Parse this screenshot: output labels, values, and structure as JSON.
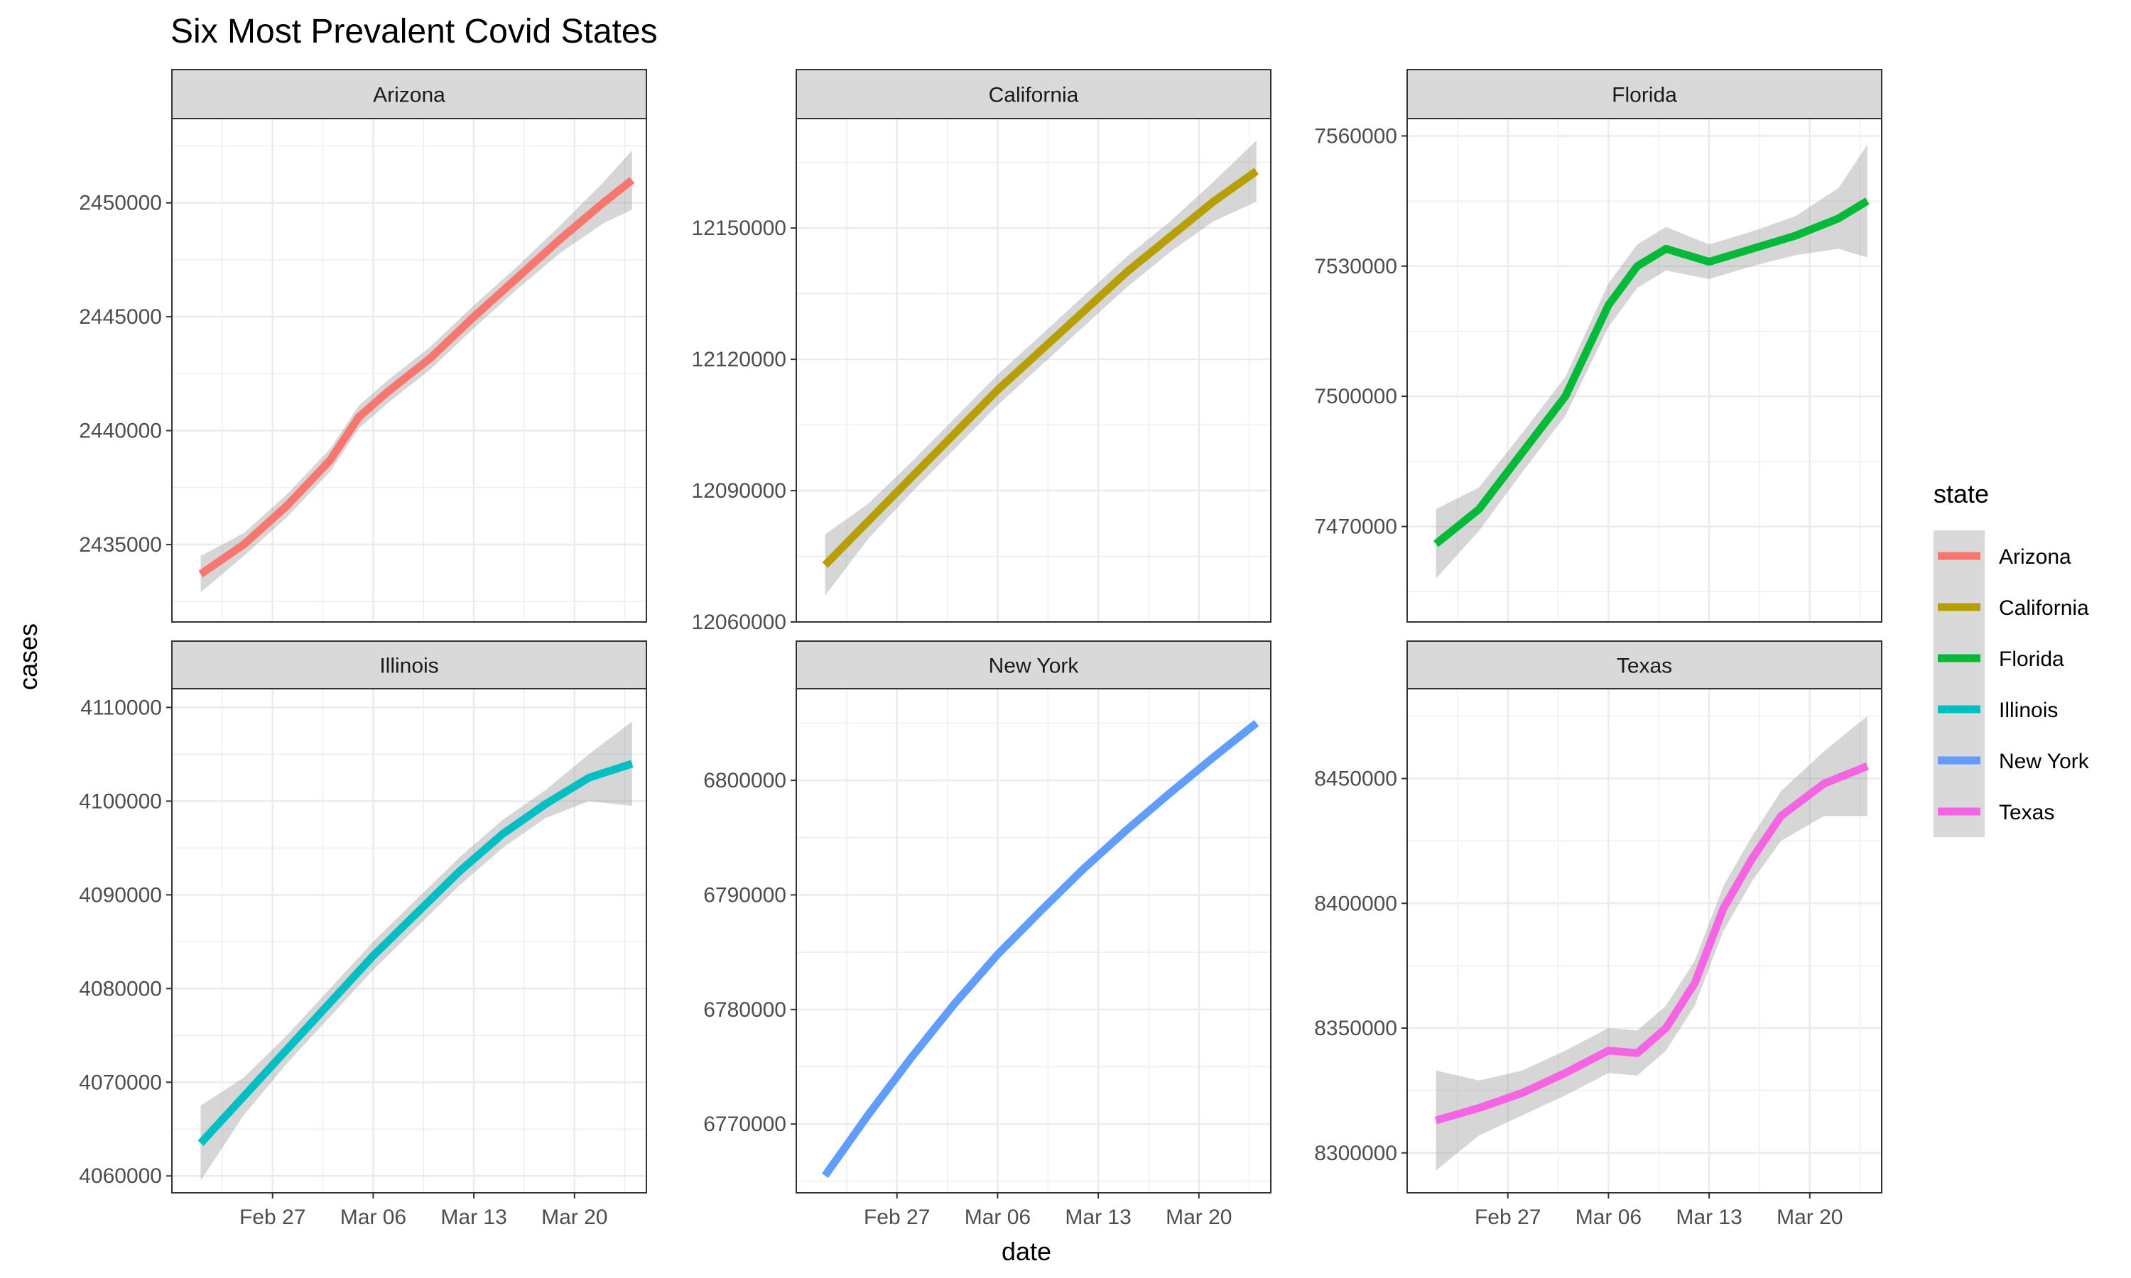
{
  "chart_data": {
    "type": "line",
    "title": "Six Most Prevalent Covid States",
    "xlabel": "date",
    "ylabel": "cases",
    "x_ticks": [
      "Feb 27",
      "Mar 06",
      "Mar 13",
      "Mar 20"
    ],
    "x_tick_dates": [
      "2022-02-27",
      "2022-03-06",
      "2022-03-13",
      "2022-03-20"
    ],
    "x_range": [
      "2022-02-20",
      "2022-03-25"
    ],
    "grid": true,
    "smoothed_with_confidence_band": true,
    "legend": {
      "title": "state",
      "position": "right",
      "entries": [
        "Arizona",
        "California",
        "Florida",
        "Illinois",
        "New York",
        "Texas"
      ]
    },
    "series": [
      {
        "name": "Arizona",
        "color": "#F8766D",
        "ylim": [
          2431600,
          2453700
        ],
        "y_ticks": [
          2435000,
          2440000,
          2445000,
          2450000
        ],
        "x": [
          "2022-02-22",
          "2022-02-25",
          "2022-02-28",
          "2022-03-03",
          "2022-03-05",
          "2022-03-07",
          "2022-03-10",
          "2022-03-13",
          "2022-03-16",
          "2022-03-19",
          "2022-03-22",
          "2022-03-24"
        ],
        "values": [
          2433700,
          2435000,
          2436700,
          2438700,
          2440600,
          2441700,
          2443200,
          2445000,
          2446700,
          2448400,
          2450000,
          2451000
        ],
        "band": [
          800,
          500,
          500,
          500,
          500,
          500,
          500,
          500,
          500,
          600,
          900,
          1300
        ]
      },
      {
        "name": "California",
        "color": "#B79F00",
        "ylim": [
          12060000,
          12175000
        ],
        "y_ticks": [
          12060000,
          12090000,
          12120000,
          12150000
        ],
        "x": [
          "2022-02-22",
          "2022-02-25",
          "2022-02-28",
          "2022-03-03",
          "2022-03-06",
          "2022-03-09",
          "2022-03-12",
          "2022-03-15",
          "2022-03-18",
          "2022-03-21",
          "2022-03-24"
        ],
        "values": [
          12073000,
          12083000,
          12093000,
          12103000,
          12113000,
          12122000,
          12131000,
          12140000,
          12148000,
          12156000,
          12163000
        ],
        "band": [
          7000,
          4000,
          3500,
          3500,
          3500,
          3500,
          3500,
          3500,
          3500,
          4500,
          7000
        ]
      },
      {
        "name": "Florida",
        "color": "#00BA38",
        "ylim": [
          7448000,
          7564000
        ],
        "y_ticks": [
          7470000,
          7500000,
          7530000,
          7560000
        ],
        "x": [
          "2022-02-22",
          "2022-02-25",
          "2022-02-28",
          "2022-03-03",
          "2022-03-06",
          "2022-03-08",
          "2022-03-10",
          "2022-03-13",
          "2022-03-16",
          "2022-03-19",
          "2022-03-22",
          "2022-03-24"
        ],
        "values": [
          7466000,
          7474000,
          7487000,
          7500000,
          7521000,
          7530000,
          7534000,
          7531000,
          7534000,
          7537000,
          7541000,
          7545000
        ],
        "band": [
          8000,
          5000,
          4500,
          4500,
          5000,
          5000,
          5000,
          4000,
          4000,
          4500,
          7000,
          13000
        ]
      },
      {
        "name": "Illinois",
        "color": "#00BFC4",
        "ylim": [
          4058200,
          4112000
        ],
        "y_ticks": [
          4060000,
          4070000,
          4080000,
          4090000,
          4100000,
          4110000
        ],
        "x": [
          "2022-02-22",
          "2022-02-25",
          "2022-02-28",
          "2022-03-03",
          "2022-03-06",
          "2022-03-09",
          "2022-03-12",
          "2022-03-15",
          "2022-03-18",
          "2022-03-21",
          "2022-03-24"
        ],
        "values": [
          4063500,
          4068500,
          4073500,
          4078500,
          4083500,
          4088000,
          4092500,
          4096500,
          4099700,
          4102500,
          4104000
        ],
        "band": [
          4000,
          2000,
          1500,
          1500,
          1500,
          1500,
          1500,
          1500,
          1500,
          2500,
          4500
        ]
      },
      {
        "name": "New York",
        "color": "#619CFF",
        "ylim": [
          6764000,
          6808000
        ],
        "y_ticks": [
          6770000,
          6780000,
          6790000,
          6800000
        ],
        "x": [
          "2022-02-22",
          "2022-02-25",
          "2022-02-28",
          "2022-03-03",
          "2022-03-06",
          "2022-03-09",
          "2022-03-12",
          "2022-03-15",
          "2022-03-18",
          "2022-03-21",
          "2022-03-24"
        ],
        "values": [
          6765500,
          6770800,
          6775800,
          6780500,
          6784800,
          6788600,
          6792300,
          6795700,
          6798900,
          6802000,
          6805000
        ],
        "band": [
          200,
          150,
          120,
          120,
          120,
          120,
          120,
          120,
          120,
          150,
          200
        ]
      },
      {
        "name": "Texas",
        "color": "#F564E3",
        "ylim": [
          8284000,
          8486000
        ],
        "y_ticks": [
          8300000,
          8350000,
          8400000,
          8450000
        ],
        "x": [
          "2022-02-22",
          "2022-02-25",
          "2022-02-28",
          "2022-03-03",
          "2022-03-06",
          "2022-03-08",
          "2022-03-10",
          "2022-03-12",
          "2022-03-14",
          "2022-03-16",
          "2022-03-18",
          "2022-03-21",
          "2022-03-24"
        ],
        "values": [
          8313000,
          8318000,
          8324000,
          8332000,
          8341000,
          8340000,
          8350000,
          8368000,
          8398000,
          8418000,
          8435000,
          8448000,
          8455000
        ],
        "band": [
          20000,
          11000,
          9000,
          9000,
          9000,
          9000,
          9000,
          9000,
          9000,
          9000,
          10000,
          13000,
          20000
        ]
      }
    ]
  }
}
